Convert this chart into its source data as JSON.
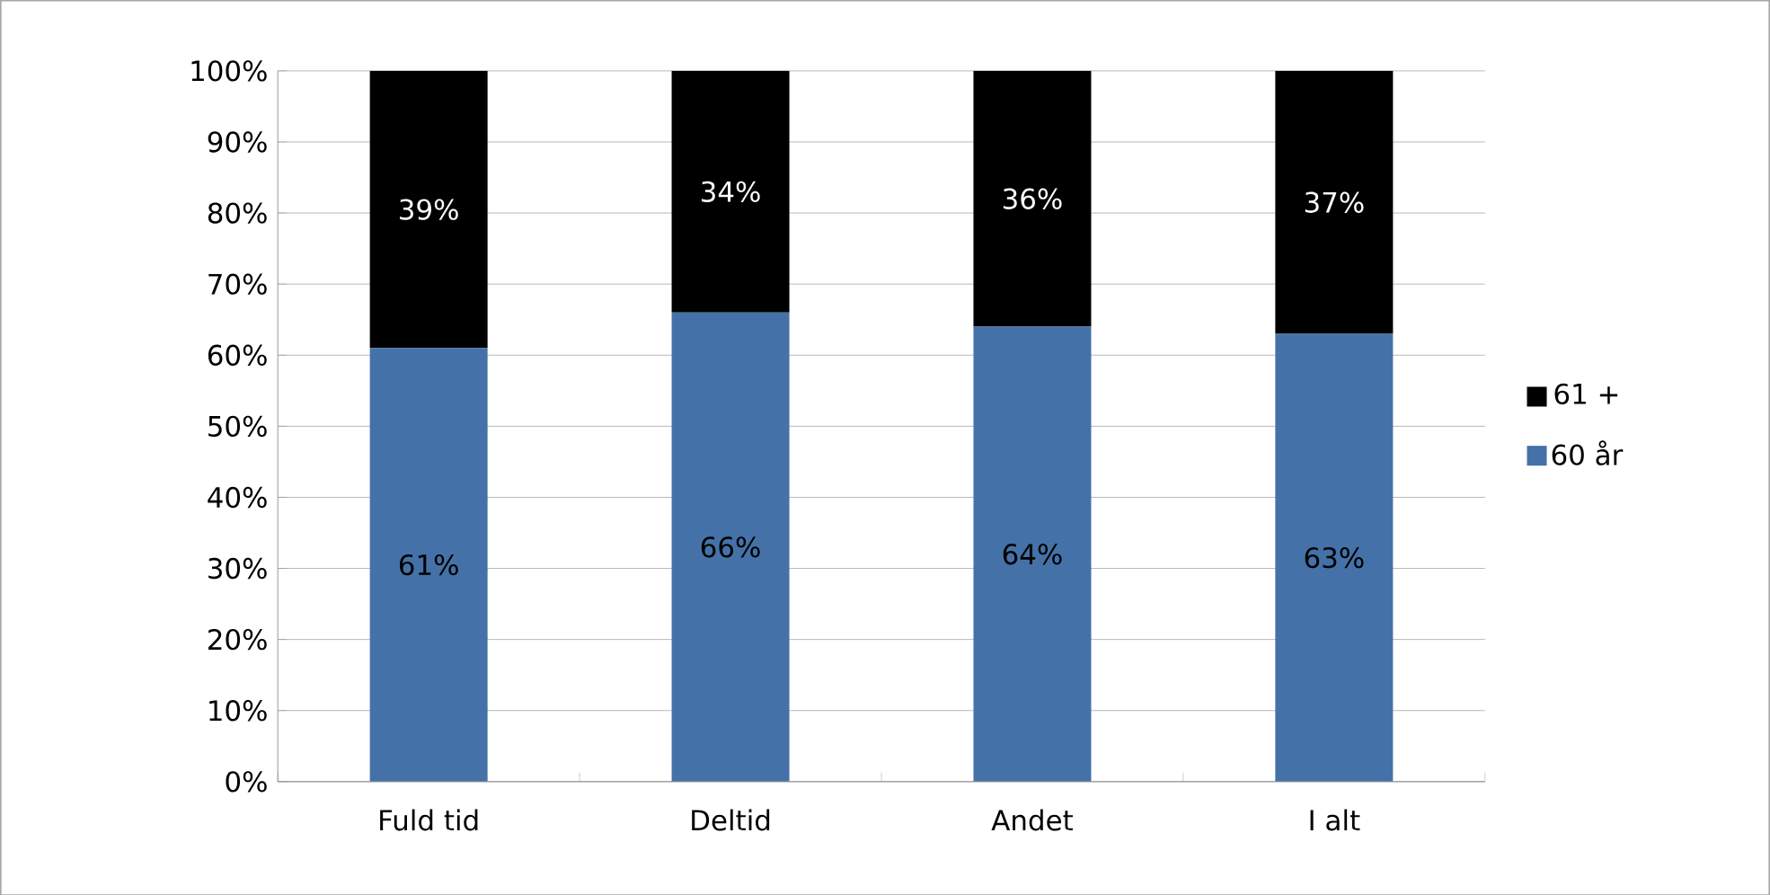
{
  "chart_data": {
    "type": "bar",
    "stacked": true,
    "categories": [
      "Fuld tid",
      "Deltid",
      "Andet",
      "I alt"
    ],
    "series": [
      {
        "name": "60 år",
        "color": "#4472a8",
        "values": [
          61,
          66,
          64,
          63
        ],
        "value_labels": [
          "61%",
          "66%",
          "64%",
          "63%"
        ]
      },
      {
        "name": "61 +",
        "color": "#000000",
        "values": [
          39,
          34,
          36,
          37
        ],
        "value_labels": [
          "39%",
          "34%",
          "36%",
          "37%"
        ]
      }
    ],
    "ylim": [
      0,
      100
    ],
    "yticks": [
      {
        "value": 0,
        "label": "0%"
      },
      {
        "value": 10,
        "label": "10%"
      },
      {
        "value": 20,
        "label": "20%"
      },
      {
        "value": 30,
        "label": "30%"
      },
      {
        "value": 40,
        "label": "40%"
      },
      {
        "value": 50,
        "label": "50%"
      },
      {
        "value": 60,
        "label": "60%"
      },
      {
        "value": 70,
        "label": "70%"
      },
      {
        "value": 80,
        "label": "80%"
      },
      {
        "value": 90,
        "label": "90%"
      },
      {
        "value": 100,
        "label": "100%"
      }
    ],
    "grid": "y",
    "legend": "right"
  }
}
